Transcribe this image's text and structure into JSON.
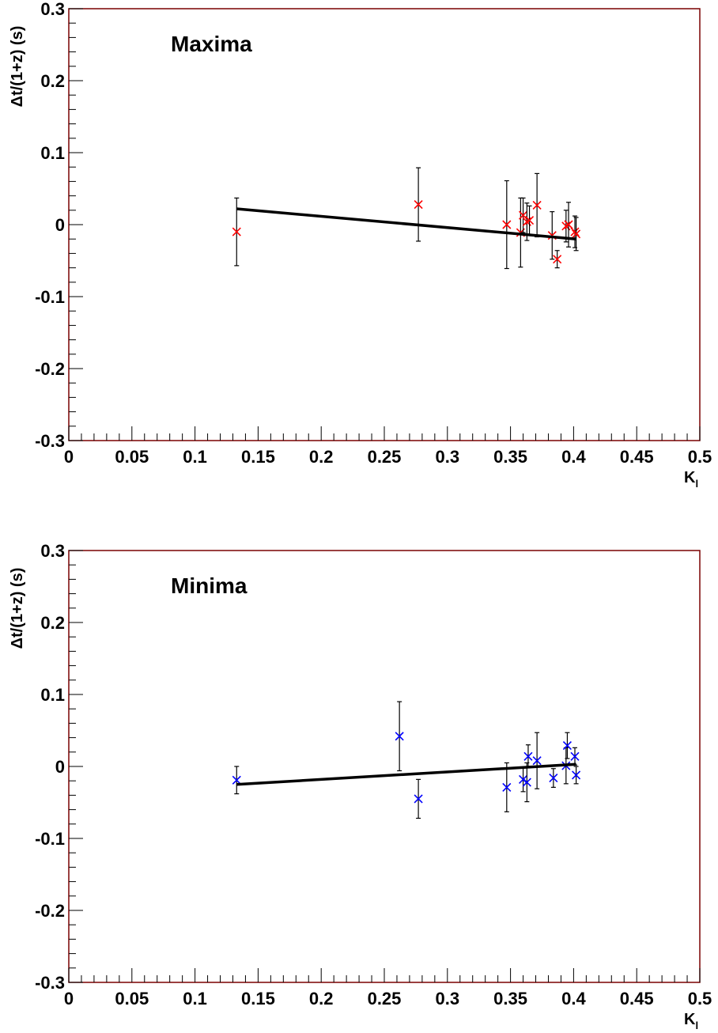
{
  "chart_data": [
    {
      "type": "scatter",
      "title": "",
      "annotation": "Maxima",
      "xlabel": "K",
      "xlabel_sub": "l",
      "ylabel": "Δt/(1+z) (s)",
      "xlim": [
        0,
        0.5
      ],
      "ylim": [
        -0.3,
        0.3
      ],
      "x_ticks": [
        "0",
        "0.05",
        "0.1",
        "0.15",
        "0.2",
        "0.25",
        "0.3",
        "0.35",
        "0.4",
        "0.45",
        "0.5"
      ],
      "y_ticks": [
        "-0.3",
        "-0.2",
        "-0.1",
        "0",
        "0.1",
        "0.2",
        "0.3"
      ],
      "grid": false,
      "marker_color": "#ff0000",
      "frame_color": "#7a0000",
      "series": [
        {
          "points": [
            {
              "x": 0.133,
              "y": -0.01,
              "err": 0.047
            },
            {
              "x": 0.277,
              "y": 0.028,
              "err": 0.051
            },
            {
              "x": 0.347,
              "y": 0.0,
              "err": 0.061
            },
            {
              "x": 0.358,
              "y": -0.011,
              "err": 0.048
            },
            {
              "x": 0.36,
              "y": 0.013,
              "err": 0.024
            },
            {
              "x": 0.363,
              "y": 0.004,
              "err": 0.026
            },
            {
              "x": 0.365,
              "y": 0.006,
              "err": 0.02
            },
            {
              "x": 0.371,
              "y": 0.027,
              "err": 0.044
            },
            {
              "x": 0.383,
              "y": -0.015,
              "err": 0.033
            },
            {
              "x": 0.387,
              "y": -0.048,
              "err": 0.012
            },
            {
              "x": 0.394,
              "y": -0.002,
              "err": 0.022
            },
            {
              "x": 0.396,
              "y": 0.0,
              "err": 0.031
            },
            {
              "x": 0.401,
              "y": -0.01,
              "err": 0.022
            },
            {
              "x": 0.402,
              "y": -0.013,
              "err": 0.023
            }
          ]
        }
      ],
      "fit_line": {
        "x": [
          0.133,
          0.402
        ],
        "y": [
          0.022,
          -0.02
        ]
      }
    },
    {
      "type": "scatter",
      "title": "",
      "annotation": "Minima",
      "xlabel": "K",
      "xlabel_sub": "l",
      "ylabel": "Δt/(1+z) (s)",
      "xlim": [
        0,
        0.5
      ],
      "ylim": [
        -0.3,
        0.3
      ],
      "x_ticks": [
        "0",
        "0.05",
        "0.1",
        "0.15",
        "0.2",
        "0.25",
        "0.3",
        "0.35",
        "0.4",
        "0.45",
        "0.5"
      ],
      "y_ticks": [
        "-0.3",
        "-0.2",
        "-0.1",
        "0",
        "0.1",
        "0.2",
        "0.3"
      ],
      "grid": false,
      "marker_color": "#0000ff",
      "frame_color": "#7a0000",
      "series": [
        {
          "points": [
            {
              "x": 0.133,
              "y": -0.019,
              "err": 0.019
            },
            {
              "x": 0.262,
              "y": 0.042,
              "err": 0.048
            },
            {
              "x": 0.277,
              "y": -0.045,
              "err": 0.027
            },
            {
              "x": 0.347,
              "y": -0.029,
              "err": 0.034
            },
            {
              "x": 0.36,
              "y": -0.018,
              "err": 0.017
            },
            {
              "x": 0.363,
              "y": -0.022,
              "err": 0.027
            },
            {
              "x": 0.364,
              "y": 0.014,
              "err": 0.016
            },
            {
              "x": 0.371,
              "y": 0.008,
              "err": 0.039
            },
            {
              "x": 0.384,
              "y": -0.016,
              "err": 0.013
            },
            {
              "x": 0.394,
              "y": 0.001,
              "err": 0.025
            },
            {
              "x": 0.395,
              "y": 0.029,
              "err": 0.018
            },
            {
              "x": 0.401,
              "y": 0.014,
              "err": 0.012
            },
            {
              "x": 0.402,
              "y": -0.012,
              "err": 0.012
            }
          ]
        }
      ],
      "fit_line": {
        "x": [
          0.133,
          0.402
        ],
        "y": [
          -0.025,
          0.003
        ]
      }
    }
  ]
}
